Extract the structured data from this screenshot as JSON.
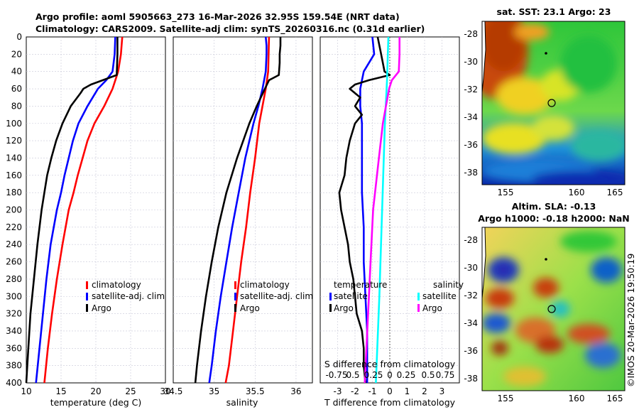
{
  "header": {
    "title_line1": "Argo profile: aoml 5905663_273 16-Mar-2026 32.95S 159.54E (NRT data)",
    "title_line2": "Climatology: CARS2009. Satellite-adj clim: synTS_20260316.nc (0.31d earlier)"
  },
  "sst_map": {
    "title": "sat. SST: 23.1 Argo: 23",
    "xticks": [
      "155",
      "160",
      "165"
    ],
    "yticks": [
      "-28",
      "-30",
      "-32",
      "-34",
      "-36",
      "-38"
    ]
  },
  "sla_map": {
    "title_line1": "Altim. SLA: -0.13",
    "title_line2": "Argo h1000: -0.18 h2000: NaN",
    "xticks": [
      "155",
      "160",
      "165"
    ],
    "yticks": [
      "-28",
      "-30",
      "-32",
      "-34",
      "-36",
      "-38"
    ]
  },
  "timestamp": "©IMOS 20-Mar-2026 19:50:19",
  "colors": {
    "climatology": "#ff0000",
    "satellite": "#0000ff",
    "argo": "#000000",
    "sat_salinity": "#00ffff",
    "argo_salinity": "#ff00ff"
  },
  "chart_data": [
    {
      "type": "line",
      "id": "temperature",
      "xlabel": "temperature (deg C)",
      "ylabel": "",
      "xlim": [
        10,
        30
      ],
      "ylim": [
        400,
        0
      ],
      "xticks": [
        "10",
        "15",
        "20",
        "25",
        "30"
      ],
      "yticks": [
        "0",
        "20",
        "40",
        "60",
        "80",
        "100",
        "120",
        "140",
        "160",
        "180",
        "200",
        "220",
        "240",
        "260",
        "280",
        "300",
        "320",
        "340",
        "360",
        "380",
        "400"
      ],
      "legend": [
        "climatology",
        "satellite-adj. clim",
        "Argo"
      ],
      "series": [
        {
          "name": "climatology",
          "depth": [
            0,
            20,
            40,
            60,
            80,
            100,
            120,
            140,
            160,
            180,
            200,
            240,
            280,
            320,
            360,
            400
          ],
          "values": [
            23.8,
            23.6,
            23.2,
            22.4,
            21.2,
            19.8,
            18.8,
            18.1,
            17.4,
            16.8,
            16.1,
            15.2,
            14.4,
            13.7,
            13.1,
            12.6
          ]
        },
        {
          "name": "satellite-adj. clim",
          "depth": [
            0,
            20,
            40,
            50,
            60,
            80,
            100,
            120,
            140,
            160,
            180,
            200,
            240,
            280,
            320,
            360,
            400
          ],
          "values": [
            22.8,
            22.7,
            22.4,
            21.5,
            20.3,
            18.8,
            17.5,
            16.7,
            16.1,
            15.5,
            15.0,
            14.4,
            13.5,
            12.9,
            12.4,
            11.9,
            11.4
          ]
        },
        {
          "name": "Argo",
          "depth": [
            0,
            20,
            44,
            50,
            55,
            60,
            65,
            80,
            100,
            120,
            140,
            160,
            180,
            200,
            240,
            280,
            320,
            360,
            400
          ],
          "values": [
            23.1,
            23.1,
            23.0,
            21.0,
            19.3,
            18.2,
            17.8,
            16.4,
            15.2,
            14.3,
            13.6,
            13.0,
            12.6,
            12.2,
            11.6,
            11.1,
            10.6,
            10.3,
            10.0
          ]
        }
      ]
    },
    {
      "type": "line",
      "id": "salinity",
      "xlabel": "salinity",
      "ylabel": "",
      "xlim": [
        34.5,
        36.2
      ],
      "ylim": [
        400,
        0
      ],
      "xticks": [
        "34.5",
        "35",
        "35.5",
        "36"
      ],
      "legend": [
        "climatology",
        "satellite-adj. clim",
        "Argo"
      ],
      "series": [
        {
          "name": "climatology",
          "depth": [
            0,
            40,
            60,
            80,
            100,
            140,
            180,
            220,
            260,
            300,
            340,
            380,
            400
          ],
          "values": [
            35.67,
            35.66,
            35.63,
            35.59,
            35.55,
            35.5,
            35.44,
            35.39,
            35.33,
            35.28,
            35.23,
            35.18,
            35.14
          ]
        },
        {
          "name": "satellite-adj. clim",
          "depth": [
            0,
            10,
            20,
            40,
            60,
            80,
            100,
            140,
            180,
            220,
            260,
            300,
            340,
            380,
            400
          ],
          "values": [
            35.63,
            35.64,
            35.64,
            35.63,
            35.59,
            35.54,
            35.48,
            35.38,
            35.3,
            35.22,
            35.15,
            35.08,
            35.02,
            34.97,
            34.94
          ]
        },
        {
          "name": "Argo",
          "depth": [
            0,
            10,
            20,
            30,
            44,
            50,
            60,
            80,
            100,
            140,
            180,
            220,
            260,
            300,
            340,
            380,
            400
          ],
          "values": [
            35.81,
            35.81,
            35.8,
            35.8,
            35.79,
            35.67,
            35.62,
            35.52,
            35.43,
            35.28,
            35.15,
            35.05,
            34.97,
            34.9,
            34.84,
            34.79,
            34.77
          ]
        }
      ]
    },
    {
      "type": "line",
      "id": "difference",
      "xlabel": "T difference from climatology",
      "secondary_xlabel": "S difference from climatology",
      "secondary_xticks": [
        "-0.75",
        "0.5",
        "0.25",
        "0",
        "0.25",
        "0.5",
        "0.75"
      ],
      "xlim": [
        -4,
        4
      ],
      "ylim": [
        400,
        0
      ],
      "xticks": [
        "-3",
        "-2",
        "-1",
        "0",
        "1",
        "2",
        "3"
      ],
      "legend_temperature_title": "temperature",
      "legend_salinity_title": "salinity",
      "legend_temperature": [
        "satellite",
        "Argo"
      ],
      "legend_salinity": [
        "satellite",
        "Argo"
      ],
      "series": [
        {
          "name": "temperature satellite",
          "depth": [
            0,
            20,
            40,
            50,
            60,
            80,
            100,
            140,
            180,
            220,
            260,
            300,
            340,
            380,
            400
          ],
          "values": [
            -1.0,
            -0.9,
            -1.5,
            -1.6,
            -1.7,
            -1.7,
            -1.6,
            -1.6,
            -1.6,
            -1.5,
            -1.5,
            -1.4,
            -1.3,
            -1.3,
            -1.3
          ]
        },
        {
          "name": "temperature Argo",
          "depth": [
            0,
            20,
            40,
            44,
            50,
            55,
            60,
            70,
            80,
            90,
            100,
            120,
            140,
            160,
            180,
            200,
            220,
            240,
            260,
            280,
            300,
            320,
            340,
            360,
            380,
            400
          ],
          "values": [
            -0.7,
            -0.5,
            -0.3,
            0.0,
            -1.2,
            -2.0,
            -2.3,
            -1.7,
            -2.0,
            -1.6,
            -2.0,
            -2.3,
            -2.5,
            -2.6,
            -2.9,
            -2.8,
            -2.6,
            -2.4,
            -2.3,
            -2.1,
            -2.0,
            -1.9,
            -1.6,
            -1.5,
            -1.5,
            -1.4
          ]
        },
        {
          "name": "salinity satellite",
          "depth": [
            0,
            50,
            100,
            200,
            300,
            400
          ],
          "values": [
            -0.02,
            -0.04,
            -0.07,
            -0.11,
            -0.15,
            -0.2
          ]
        },
        {
          "name": "salinity Argo",
          "depth": [
            0,
            20,
            40,
            50,
            60,
            100,
            150,
            200,
            250,
            300,
            350,
            400
          ],
          "values": [
            0.14,
            0.14,
            0.13,
            0.03,
            -0.01,
            -0.1,
            -0.17,
            -0.24,
            -0.27,
            -0.3,
            -0.33,
            -0.36
          ]
        }
      ]
    }
  ]
}
